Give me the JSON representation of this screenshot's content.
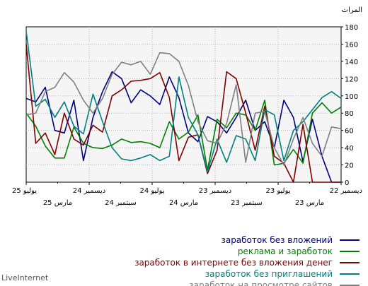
{
  "chart_data": {
    "type": "line",
    "ylabel": "المرات",
    "ylim": [
      0,
      180
    ],
    "yticks": [
      0,
      20,
      40,
      60,
      80,
      100,
      120,
      140,
      160,
      180
    ],
    "y_axis_side": "right",
    "grid": true,
    "legend_placement": "bottom-right",
    "x_labels_top": [
      "يوليو 25",
      "ديسمبر 24",
      "يوليو 24",
      "ديسمبر 23",
      "يوليو 23",
      "ديسمبر 22"
    ],
    "x_labels_bottom": [
      "مارس 25",
      "سبتمبر 24",
      "مارس 24",
      "سبتمبر 23",
      "مارس 23"
    ],
    "series": [
      {
        "name": "заработок без вложений",
        "color": "#000080",
        "values": [
          97,
          93,
          110,
          60,
          57,
          95,
          25,
          75,
          105,
          128,
          120,
          92,
          107,
          100,
          90,
          122,
          98,
          57,
          47,
          76,
          70,
          57,
          75,
          95,
          60,
          70,
          40,
          95,
          75,
          24,
          73,
          30,
          0,
          0
        ]
      },
      {
        "name": "реклама и заработок",
        "color": "#008000",
        "values": [
          80,
          65,
          42,
          28,
          28,
          64,
          45,
          40,
          39,
          43,
          50,
          46,
          47,
          45,
          40,
          70,
          50,
          58,
          78,
          14,
          73,
          63,
          80,
          78,
          60,
          95,
          20,
          22,
          38,
          22,
          80,
          92,
          80,
          87
        ]
      },
      {
        "name": "заработок в интернете без вложения денег",
        "color": "#800000",
        "values": [
          160,
          45,
          57,
          32,
          80,
          50,
          43,
          66,
          58,
          100,
          107,
          117,
          118,
          120,
          127,
          98,
          25,
          52,
          55,
          10,
          37,
          128,
          120,
          80,
          37,
          88,
          30,
          22,
          0,
          67,
          0,
          0,
          0,
          0
        ]
      },
      {
        "name": "заработок без приглашений",
        "color": "#008080",
        "values": [
          175,
          88,
          96,
          75,
          93,
          65,
          56,
          102,
          70,
          40,
          27,
          25,
          28,
          32,
          25,
          30,
          122,
          75,
          55,
          12,
          50,
          23,
          54,
          50,
          25,
          84,
          78,
          25,
          60,
          70,
          84,
          98,
          105,
          97
        ]
      },
      {
        "name": "заработок на просмотре сайтов",
        "color": "#808080",
        "values": [
          78,
          80,
          105,
          110,
          127,
          116,
          95,
          80,
          97,
          125,
          139,
          136,
          140,
          125,
          150,
          149,
          140,
          112,
          70,
          48,
          45,
          68,
          113,
          23,
          80,
          82,
          40,
          20,
          50,
          75,
          45,
          30,
          64,
          62
        ]
      }
    ]
  },
  "watermark": "LiveInternet"
}
